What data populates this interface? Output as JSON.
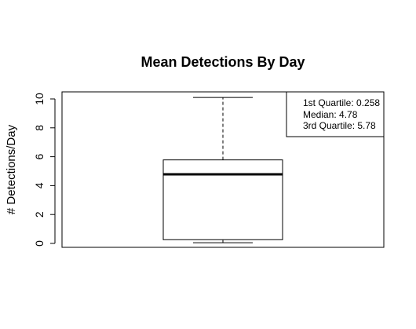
{
  "chart_data": {
    "type": "box",
    "title": "Mean Detections By Day",
    "xlabel": "",
    "ylabel": "# Detections/Day",
    "ylim": [
      0,
      10.5
    ],
    "yticks": [
      0,
      2,
      4,
      6,
      8,
      10
    ],
    "box": {
      "min": 0.05,
      "q1": 0.258,
      "median": 4.78,
      "q3": 5.78,
      "max": 10.1
    },
    "legend": {
      "position": "top-right",
      "lines": [
        "1st Quartile: 0.258",
        "Median: 4.78",
        "3rd Quartile: 5.78"
      ]
    },
    "grid": false
  }
}
